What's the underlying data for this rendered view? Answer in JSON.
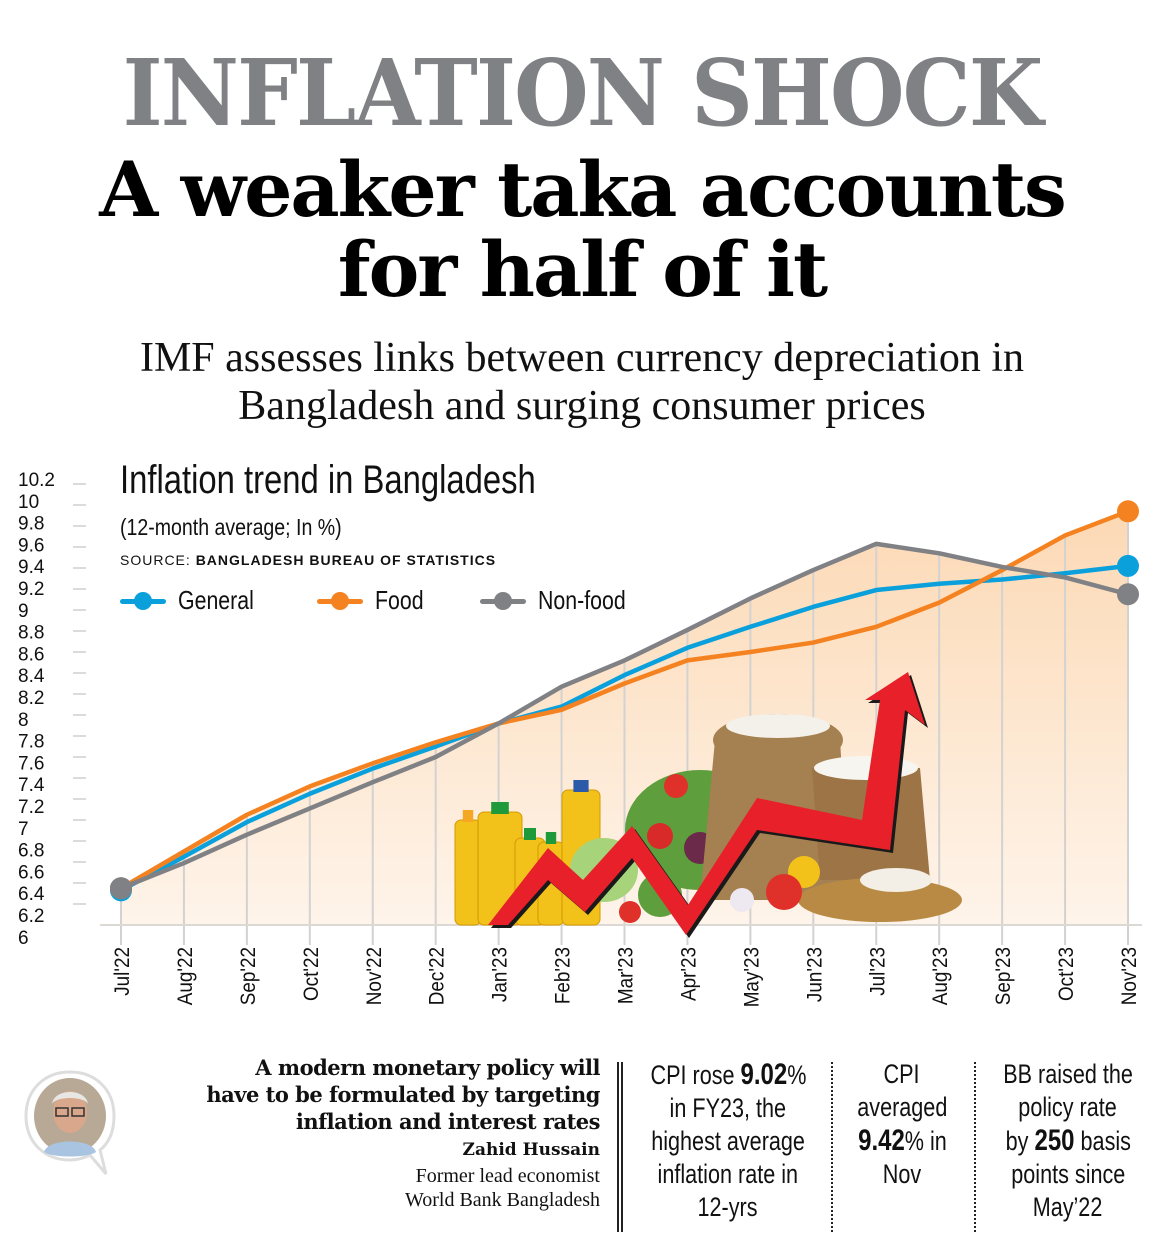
{
  "header": {
    "kicker": "INFLATION SHOCK",
    "headline_line1": "A weaker taka accounts",
    "headline_line2": "for half of it",
    "deck_line1": "IMF assesses links between currency depreciation in",
    "deck_line2": "Bangladesh and surging consumer prices"
  },
  "chart_data": {
    "type": "line",
    "title": "Inflation trend in Bangladesh",
    "subtitle": "(12-month average; In %)",
    "source_prefix": "SOURCE:",
    "source": "BANGLADESH BUREAU OF STATISTICS",
    "xlabel": "",
    "ylabel": "",
    "ylim": [
      6,
      10.2
    ],
    "yticks": [
      "10.2",
      "10",
      "9.8",
      "9.6",
      "9.4",
      "9.2",
      "9",
      "8.8",
      "8.6",
      "8.4",
      "8.2",
      "8",
      "7.8",
      "7.6",
      "7.4",
      "7.2",
      "7",
      "6.8",
      "6.6",
      "6.4",
      "6.2",
      "6"
    ],
    "ytick_values": [
      10.2,
      10,
      9.8,
      9.6,
      9.4,
      9.2,
      9,
      8.8,
      8.6,
      8.4,
      8.2,
      8,
      7.8,
      7.6,
      7.4,
      7.2,
      7,
      6.8,
      6.6,
      6.4,
      6.2,
      6
    ],
    "categories": [
      "Jul'22",
      "Aug'22",
      "Sep'22",
      "Oct'22",
      "Nov'22",
      "Dec'22",
      "Jan'23",
      "Feb'23",
      "Mar'23",
      "Apr'23",
      "May'23",
      "Jun'23",
      "Jul'23",
      "Aug'23",
      "Sep'23",
      "Oct'23",
      "Nov'23"
    ],
    "grid": true,
    "legend_position": "top-left",
    "series": [
      {
        "name": "General",
        "color": "#0aa0dc",
        "values": [
          6.33,
          6.65,
          6.98,
          7.25,
          7.49,
          7.7,
          7.92,
          8.08,
          8.38,
          8.64,
          8.84,
          9.03,
          9.19,
          9.25,
          9.29,
          9.35,
          9.42
        ]
      },
      {
        "name": "Food",
        "color": "#f58220",
        "values": [
          6.35,
          6.7,
          7.05,
          7.32,
          7.54,
          7.74,
          7.92,
          8.05,
          8.3,
          8.52,
          8.6,
          8.69,
          8.84,
          9.07,
          9.38,
          9.71,
          9.94
        ]
      },
      {
        "name": "Non-food",
        "color": "#808184",
        "values": [
          6.35,
          6.59,
          6.86,
          7.11,
          7.36,
          7.6,
          7.92,
          8.27,
          8.52,
          8.81,
          9.11,
          9.38,
          9.63,
          9.54,
          9.41,
          9.31,
          9.15
        ]
      }
    ]
  },
  "quote": {
    "text_line1": "A modern monetary policy will",
    "text_line2": "have to be formulated by targeting",
    "text_line3": "inflation and interest rates",
    "name": "Zahid Hussain",
    "role_line1": "Former lead economist",
    "role_line2": "World Bank Bangladesh",
    "avatar_icon": "person-portrait-icon"
  },
  "facts": [
    {
      "lines": [
        [
          "CPI rose ",
          {
            "b": "9.02"
          },
          "%"
        ],
        [
          "in FY23, the"
        ],
        [
          "highest average"
        ],
        [
          "inflation rate in"
        ],
        [
          "12-yrs"
        ]
      ]
    },
    {
      "lines": [
        [
          "CPI"
        ],
        [
          "averaged"
        ],
        [
          {
            "b": "9.42"
          },
          "% in"
        ],
        [
          "Nov"
        ]
      ]
    },
    {
      "lines": [
        [
          "BB raised the"
        ],
        [
          "policy rate"
        ],
        [
          "by ",
          {
            "b": "250"
          },
          " basis"
        ],
        [
          "points since"
        ],
        [
          "May’22"
        ]
      ]
    }
  ],
  "colors": {
    "kicker": "#808184",
    "area_fill": "#fde3c8",
    "arrow": "#e8202a"
  }
}
